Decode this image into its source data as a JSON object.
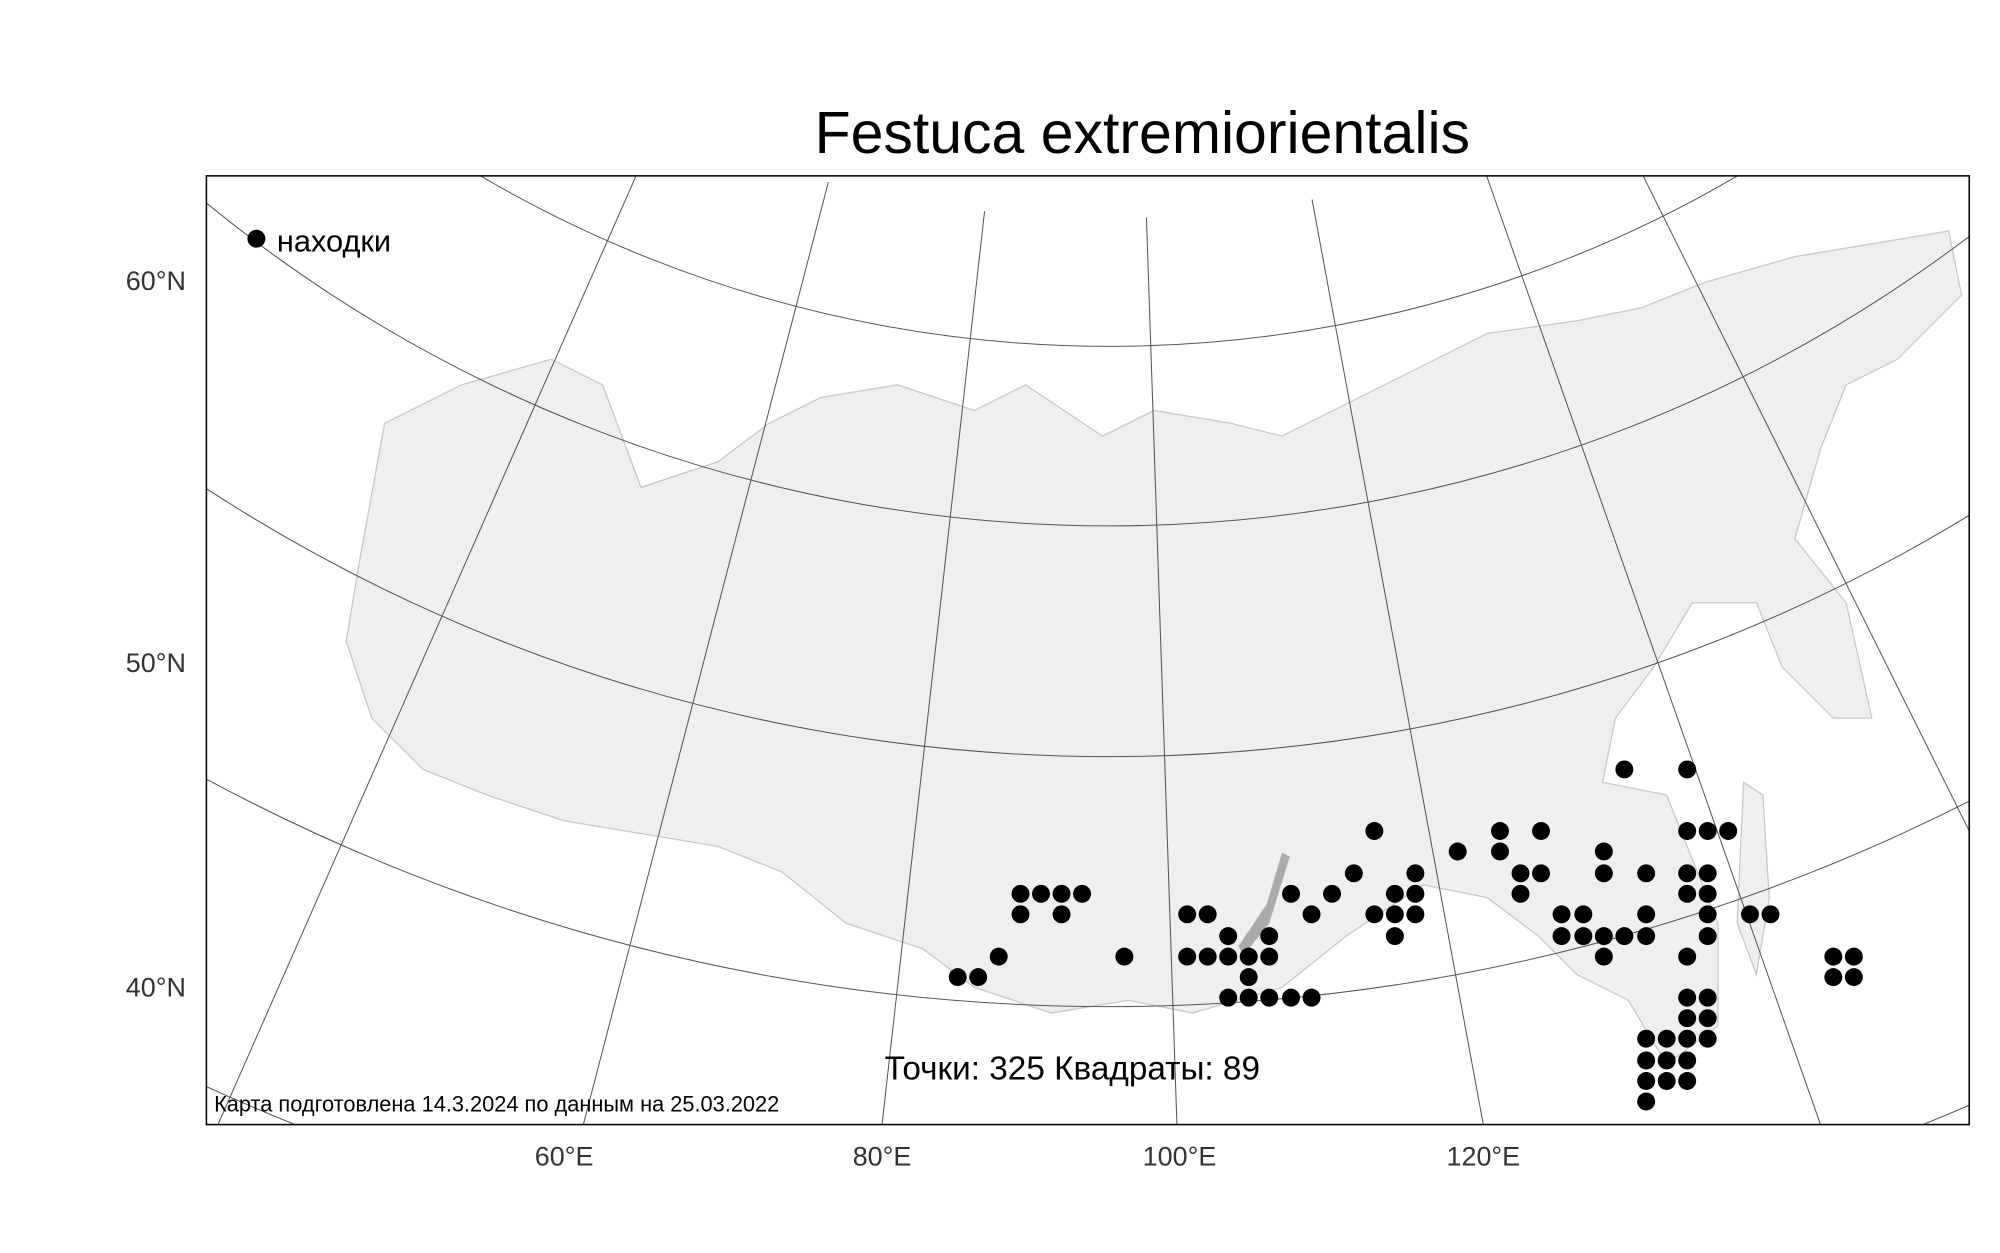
{
  "title": "Festuca extremiorientalis",
  "legend": {
    "label": "находки"
  },
  "lat_labels": [
    "60°N",
    "50°N",
    "40°N"
  ],
  "lon_labels": [
    "60°E",
    "80°E",
    "100°E",
    "120°E"
  ],
  "stats": "Точки: 325 Квадраты: 89",
  "footnote": "Карта подготовлена 14.3.2024 по данным на 25.03.2022"
}
